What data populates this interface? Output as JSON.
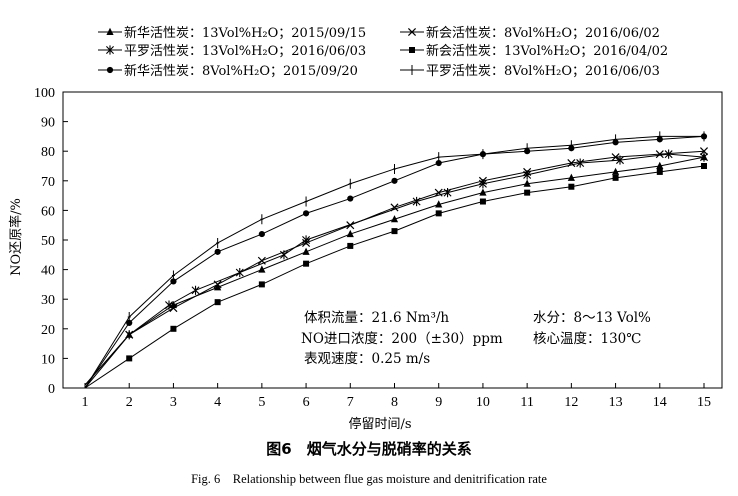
{
  "chart_data": {
    "type": "line",
    "title": "",
    "xlabel": "停留时间/s",
    "ylabel": "NO还原率/%",
    "xlim": [
      0.5,
      15.5
    ],
    "ylim": [
      0,
      100
    ],
    "xticks": [
      1,
      2,
      3,
      4,
      5,
      6,
      7,
      8,
      9,
      10,
      11,
      12,
      13,
      14,
      15
    ],
    "yticks": [
      0,
      10,
      20,
      30,
      40,
      50,
      60,
      70,
      80,
      90,
      100
    ],
    "grid": false,
    "legend_position": "top",
    "series": [
      {
        "name": "新华活性炭：13Vol%H₂O；2015/09/15",
        "marker": "triangle",
        "x": [
          1,
          2,
          3,
          4,
          5,
          6,
          7,
          8,
          9,
          10,
          11,
          12,
          13,
          14,
          15
        ],
        "y": [
          0,
          18,
          28,
          34,
          40,
          46,
          52,
          57,
          62,
          66,
          69,
          71,
          73,
          75,
          78
        ]
      },
      {
        "name": "平罗活性炭：13Vol%H₂O；2016/06/03",
        "marker": "star",
        "x": [
          1,
          2,
          2.9,
          3.5,
          4.5,
          5.5,
          6,
          8.5,
          9.2,
          10,
          11,
          12.2,
          13.1,
          14.2,
          15
        ],
        "y": [
          1,
          18,
          28,
          33,
          39,
          45,
          50,
          63,
          66,
          69,
          72,
          76,
          77,
          79,
          78
        ]
      },
      {
        "name": "新华活性炭：8Vol%H₂O；2015/09/20",
        "marker": "circle",
        "x": [
          1,
          2,
          3,
          4,
          5,
          6,
          7,
          8,
          9,
          10,
          11,
          12,
          13,
          14,
          15
        ],
        "y": [
          0,
          22,
          36,
          46,
          52,
          59,
          64,
          70,
          76,
          79,
          80,
          81,
          83,
          84,
          85
        ]
      },
      {
        "name": "新会活性炭：8Vol%H₂O；2016/06/02",
        "marker": "x",
        "x": [
          1,
          2,
          3,
          4,
          5,
          6,
          7,
          8,
          9,
          10,
          11,
          12,
          13,
          14,
          15
        ],
        "y": [
          1,
          18,
          27,
          35,
          43,
          49,
          55,
          61,
          66,
          70,
          73,
          76,
          78,
          79,
          80
        ]
      },
      {
        "name": "新会活性炭：13Vol%H₂O；2016/04/02",
        "marker": "square",
        "x": [
          1,
          2,
          3,
          4,
          5,
          6,
          7,
          8,
          9,
          10,
          11,
          12,
          13,
          14,
          15
        ],
        "y": [
          0,
          10,
          20,
          29,
          35,
          42,
          48,
          53,
          59,
          63,
          66,
          68,
          71,
          73,
          75
        ]
      },
      {
        "name": "平罗活性炭：8Vol%H₂O；2016/06/03",
        "marker": "plus",
        "x": [
          1,
          2,
          3,
          4,
          5,
          6,
          7,
          8,
          9,
          10,
          11,
          12,
          13,
          14,
          15
        ],
        "y": [
          0,
          24,
          38,
          49,
          57,
          63,
          69,
          74,
          78,
          79,
          81,
          82,
          84,
          85,
          85
        ]
      }
    ],
    "annotations": {
      "flow": "体积流量：21.6 Nm³/h",
      "moisture": "水分：8～13 Vol%",
      "no_conc": "NO进口浓度：200（±30）ppm",
      "core_temp": "核心温度：130℃",
      "velocity": "表观速度：0.25 m/s"
    }
  },
  "caption": {
    "cn": "图6　烟气水分与脱硝率的关系",
    "en": "Fig. 6　Relationship between flue gas moisture and denitrification rate"
  }
}
